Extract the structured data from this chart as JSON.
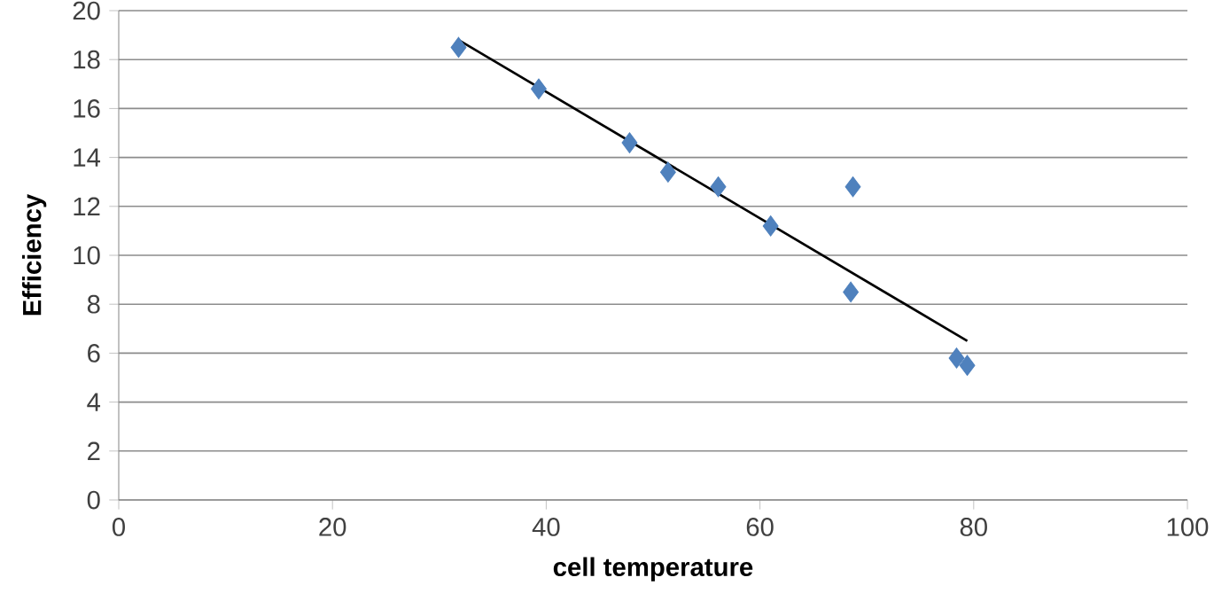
{
  "chart_data": {
    "type": "scatter",
    "xlabel": "cell temperature",
    "ylabel": "Efficiency",
    "xlim": [
      0,
      100
    ],
    "ylim": [
      0,
      20
    ],
    "xticks": [
      0,
      20,
      40,
      60,
      80,
      100
    ],
    "yticks": [
      0,
      2,
      4,
      6,
      8,
      10,
      12,
      14,
      16,
      18,
      20
    ],
    "grid": "y",
    "marker": "diamond",
    "series": [
      {
        "color": "#4f81bd",
        "x": [
          31.8,
          39.3,
          47.8,
          51.4,
          56.1,
          61.0,
          68.7,
          68.5,
          78.4,
          79.4
        ],
        "values": [
          18.5,
          16.8,
          14.6,
          13.4,
          12.8,
          11.2,
          12.8,
          8.5,
          5.8,
          5.5
        ]
      },
      {
        "type": "line",
        "color": "#000000",
        "marker": "none",
        "x": [
          31.8,
          79.4
        ],
        "values": [
          18.8,
          6.5
        ]
      }
    ]
  }
}
